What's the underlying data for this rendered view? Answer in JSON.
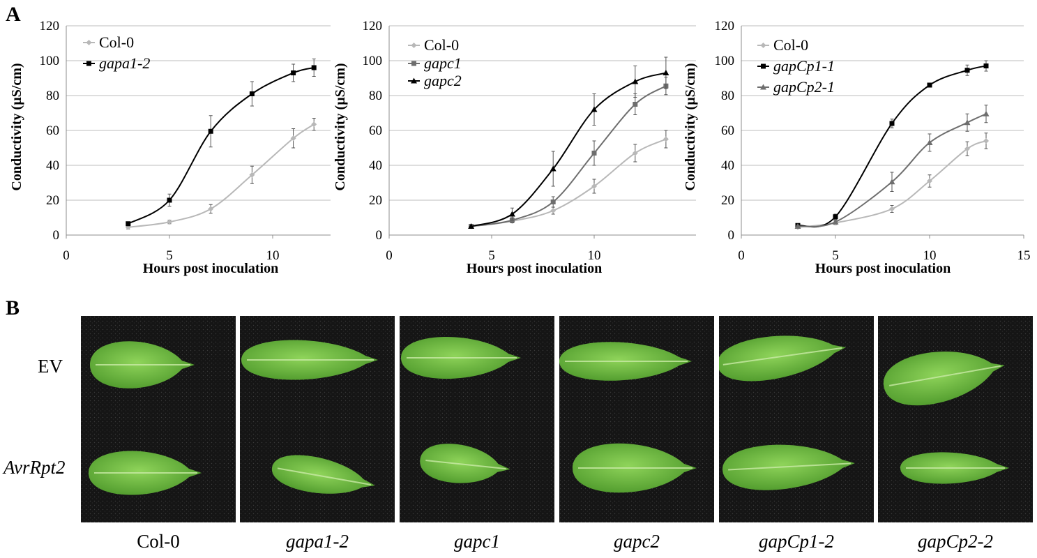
{
  "panels": {
    "a": "A",
    "b": "B"
  },
  "chart_data": [
    {
      "type": "line",
      "xlabel": "Hours post inoculation",
      "ylabel": "Conductivity (µS/cm)",
      "xlim": [
        0,
        13
      ],
      "ylim": [
        0,
        120
      ],
      "xticks": [
        0,
        5,
        10
      ],
      "yticks": [
        0,
        20,
        40,
        60,
        80,
        100,
        120
      ],
      "grid": true,
      "legend_position": "top-left",
      "series": [
        {
          "name": "Col-0",
          "color": "#b8b8b8",
          "marker": "diamond",
          "italic": false,
          "x": [
            3,
            5,
            7,
            9,
            11,
            12
          ],
          "y": [
            4.5,
            7.5,
            15,
            34.5,
            55.5,
            63.5
          ],
          "err": [
            1,
            1,
            2.5,
            5,
            5.5,
            3.5
          ]
        },
        {
          "name": "gapa1-2",
          "color": "#000000",
          "marker": "square",
          "italic": true,
          "x": [
            3,
            5,
            7,
            9,
            11,
            12
          ],
          "y": [
            6.5,
            20,
            59.5,
            81,
            93,
            96
          ],
          "err": [
            1,
            3.5,
            9,
            7,
            5,
            5
          ]
        }
      ]
    },
    {
      "type": "line",
      "xlabel": "Hours post inoculation",
      "ylabel": "Conductivity (µS/cm)",
      "xlim": [
        0,
        13
      ],
      "ylim": [
        0,
        120
      ],
      "xticks": [
        0,
        5,
        10
      ],
      "yticks": [
        0,
        20,
        40,
        60,
        80,
        100,
        120
      ],
      "grid": true,
      "legend_position": "top-left",
      "series": [
        {
          "name": "Col-0",
          "color": "#b8b8b8",
          "marker": "diamond",
          "italic": false,
          "x": [
            4,
            6,
            8,
            10,
            12,
            13.5
          ],
          "y": [
            5,
            8,
            14,
            28,
            47,
            55
          ],
          "err": [
            0.5,
            1,
            2,
            4,
            5,
            5
          ]
        },
        {
          "name": "gapc1",
          "color": "#6e6e6e",
          "marker": "square",
          "italic": true,
          "x": [
            4,
            6,
            8,
            10,
            12,
            13.5
          ],
          "y": [
            5,
            8.5,
            19,
            47,
            75,
            85.5
          ],
          "err": [
            0.5,
            1.5,
            3,
            7,
            6,
            5
          ]
        },
        {
          "name": "gapc2",
          "color": "#000000",
          "marker": "triangle",
          "italic": true,
          "x": [
            4,
            6,
            8,
            10,
            12,
            13.5
          ],
          "y": [
            5,
            12,
            38,
            72,
            88,
            93
          ],
          "err": [
            0.5,
            3.5,
            10,
            9,
            9,
            9
          ]
        }
      ]
    },
    {
      "type": "line",
      "xlabel": "Hours post inoculation",
      "ylabel": "Conductivity (µS/cm)",
      "xlim": [
        0,
        15
      ],
      "ylim": [
        0,
        120
      ],
      "xticks": [
        0,
        5,
        10,
        15
      ],
      "yticks": [
        0,
        20,
        40,
        60,
        80,
        100,
        120
      ],
      "grid": true,
      "legend_position": "top-left",
      "series": [
        {
          "name": "Col-0",
          "color": "#b8b8b8",
          "marker": "diamond",
          "italic": false,
          "x": [
            3,
            5,
            8,
            10,
            12,
            13
          ],
          "y": [
            4.5,
            7,
            15,
            31,
            49.5,
            54
          ],
          "err": [
            0.5,
            1,
            2,
            3.5,
            4,
            4.5
          ]
        },
        {
          "name": "gapCp1-1",
          "color": "#000000",
          "marker": "square",
          "italic": true,
          "x": [
            3,
            5,
            8,
            10,
            12,
            13
          ],
          "y": [
            5.5,
            10.5,
            64,
            86,
            94.5,
            97
          ],
          "err": [
            0.5,
            1.5,
            2.5,
            1,
            3,
            3
          ]
        },
        {
          "name": "gapCp2-1",
          "color": "#6e6e6e",
          "marker": "triangle",
          "italic": true,
          "x": [
            3,
            5,
            8,
            10,
            12,
            13
          ],
          "y": [
            5,
            7.5,
            30.5,
            53,
            64.5,
            69.5
          ],
          "err": [
            0.5,
            1,
            5.5,
            5,
            5,
            5
          ]
        }
      ]
    }
  ],
  "photos": {
    "row_labels": [
      "EV",
      "AvrRpt2"
    ],
    "columns": [
      "Col-0",
      "gapa1-2",
      "gapc1",
      "gapc2",
      "gapCp1-2",
      "gapCp2-2"
    ]
  }
}
